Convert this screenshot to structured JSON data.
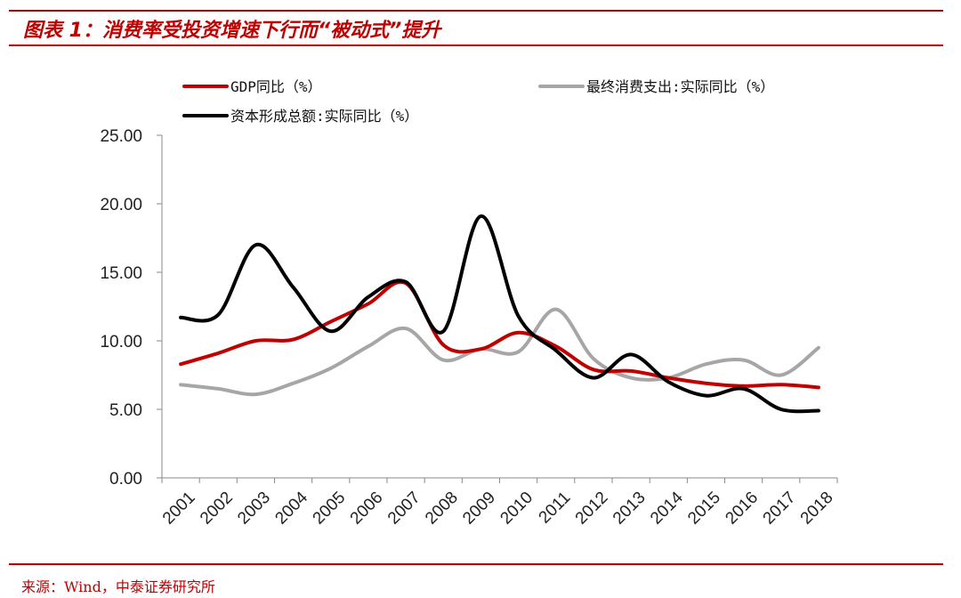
{
  "header": {
    "title": "图表 1：消费率受投资增速下行而“被动式”提升",
    "source": "来源：Wind，中泰证券研究所"
  },
  "colors": {
    "accent": "#c00000",
    "gdp": "#c00000",
    "consumption": "#a6a6a6",
    "capital": "#000000"
  },
  "chart_data": {
    "type": "line",
    "title": "",
    "xlabel": "",
    "ylabel": "",
    "ylim": [
      0,
      25
    ],
    "ytick_labels": [
      "0.00",
      "5.00",
      "10.00",
      "15.00",
      "20.00",
      "25.00"
    ],
    "categories": [
      "2001",
      "2002",
      "2003",
      "2004",
      "2005",
      "2006",
      "2007",
      "2008",
      "2009",
      "2010",
      "2011",
      "2012",
      "2013",
      "2014",
      "2015",
      "2016",
      "2017",
      "2018"
    ],
    "legend_position": "top",
    "grid": false,
    "series": [
      {
        "name": "GDP同比（%）",
        "color": "#c00000",
        "values": [
          8.3,
          9.1,
          10.0,
          10.1,
          11.4,
          12.7,
          14.2,
          9.7,
          9.4,
          10.6,
          9.6,
          7.9,
          7.8,
          7.3,
          6.9,
          6.7,
          6.8,
          6.6
        ]
      },
      {
        "name": "最终消费支出:实际同比（%）",
        "color": "#a6a6a6",
        "values": [
          6.8,
          6.5,
          6.1,
          6.9,
          8.0,
          9.6,
          10.9,
          8.6,
          9.4,
          9.2,
          12.3,
          8.7,
          7.3,
          7.3,
          8.3,
          8.6,
          7.5,
          9.5
        ]
      },
      {
        "name": "资本形成总额:实际同比（%）",
        "color": "#000000",
        "values": [
          11.7,
          11.9,
          17.0,
          13.9,
          10.7,
          13.2,
          14.3,
          10.7,
          19.1,
          11.8,
          9.3,
          7.3,
          9.0,
          7.0,
          6.0,
          6.5,
          5.0,
          4.9
        ]
      }
    ]
  }
}
